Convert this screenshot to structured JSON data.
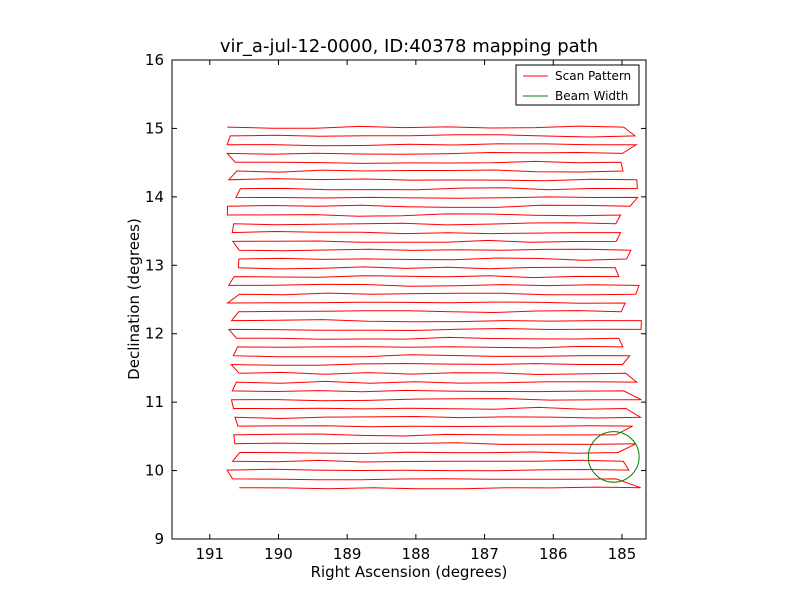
{
  "chart_data": {
    "type": "line",
    "title": "vir_a-jul-12-0000, ID:40378 mapping path",
    "xlabel": "Right Ascension (degrees)",
    "ylabel": "Declination (degrees)",
    "xlim": [
      191.55,
      184.65
    ],
    "ylim": [
      9,
      16
    ],
    "x_ticks": [
      191,
      190,
      189,
      188,
      187,
      186,
      185
    ],
    "x_tick_labels": [
      "191",
      "190",
      "189",
      "188",
      "187",
      "186",
      "185"
    ],
    "y_ticks": [
      9,
      10,
      11,
      12,
      13,
      14,
      15,
      16
    ],
    "y_tick_labels": [
      "9",
      "10",
      "11",
      "12",
      "13",
      "14",
      "15",
      "16"
    ],
    "grid": false,
    "legend": {
      "position": "top-right"
    },
    "series": [
      {
        "name": "Scan Pattern",
        "color": "#ff0000",
        "scan": {
          "dec_start": 9.75,
          "dec_end": 15.02,
          "rows": 42,
          "ra_left_min": 190.75,
          "ra_left_max": 190.55,
          "ra_right_min": 185.1,
          "ra_right_max": 184.7
        }
      },
      {
        "name": "Beam Width",
        "color": "#008000",
        "circle": {
          "ra": 185.12,
          "dec": 10.2,
          "radius_deg": 0.37
        }
      }
    ]
  }
}
